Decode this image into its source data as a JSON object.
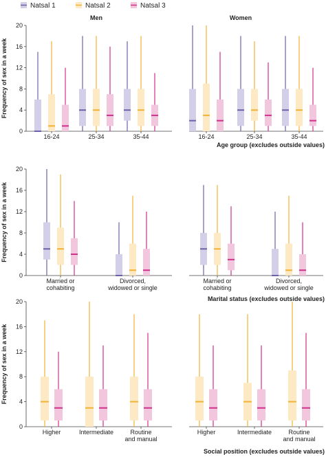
{
  "legend": [
    {
      "name": "Natsal 1",
      "color": "#6f5fa8",
      "fill": "#d4cfe8"
    },
    {
      "name": "Natsal 2",
      "color": "#f2b233",
      "fill": "#fde9c4"
    },
    {
      "name": "Natsal 3",
      "color": "#d0308c",
      "fill": "#f2c7de"
    }
  ],
  "chart_data": [
    {
      "type": "boxplot",
      "ylabel": "Frequency of sex in a week",
      "xlabel": "Age group (excludes outside values)",
      "ylim": [
        0,
        20
      ],
      "yticks": [
        0,
        4,
        8,
        12,
        16,
        20
      ],
      "grid": false,
      "groups": [
        {
          "label": "Men",
          "categories": [
            {
              "label": "16-24",
              "boxes": [
                {
                  "series": "Natsal 1",
                  "min": 0,
                  "q1": 0,
                  "median": 0,
                  "q3": 6,
                  "max": 15
                },
                {
                  "series": "Natsal 2",
                  "min": 0,
                  "q1": 0,
                  "median": 1,
                  "q3": 7,
                  "max": 17
                },
                {
                  "series": "Natsal 3",
                  "min": 0,
                  "q1": 0,
                  "median": 1,
                  "q3": 5,
                  "max": 12
                }
              ]
            },
            {
              "label": "25-34",
              "boxes": [
                {
                  "series": "Natsal 1",
                  "min": 0,
                  "q1": 1,
                  "median": 4,
                  "q3": 8,
                  "max": 18
                },
                {
                  "series": "Natsal 2",
                  "min": 0,
                  "q1": 1,
                  "median": 4,
                  "q3": 8,
                  "max": 18
                },
                {
                  "series": "Natsal 3",
                  "min": 0,
                  "q1": 1,
                  "median": 3,
                  "q3": 7,
                  "max": 16
                }
              ]
            },
            {
              "label": "35-44",
              "boxes": [
                {
                  "series": "Natsal 1",
                  "min": 0,
                  "q1": 2,
                  "median": 4,
                  "q3": 8,
                  "max": 17
                },
                {
                  "series": "Natsal 2",
                  "min": 0,
                  "q1": 1,
                  "median": 4,
                  "q3": 8,
                  "max": 18
                },
                {
                  "series": "Natsal 3",
                  "min": 0,
                  "q1": 1,
                  "median": 3,
                  "q3": 5,
                  "max": 11
                }
              ]
            }
          ]
        },
        {
          "label": "Women",
          "categories": [
            {
              "label": "16-24",
              "boxes": [
                {
                  "series": "Natsal 1",
                  "min": 0,
                  "q1": 0,
                  "median": 2,
                  "q3": 8,
                  "max": 20
                },
                {
                  "series": "Natsal 2",
                  "min": 0,
                  "q1": 0,
                  "median": 3,
                  "q3": 9,
                  "max": 20
                },
                {
                  "series": "Natsal 3",
                  "min": 0,
                  "q1": 0,
                  "median": 2,
                  "q3": 6,
                  "max": 15
                }
              ]
            },
            {
              "label": "25-34",
              "boxes": [
                {
                  "series": "Natsal 1",
                  "min": 0,
                  "q1": 1,
                  "median": 4,
                  "q3": 8,
                  "max": 18
                },
                {
                  "series": "Natsal 2",
                  "min": 0,
                  "q1": 2,
                  "median": 4,
                  "q3": 8,
                  "max": 17
                },
                {
                  "series": "Natsal 3",
                  "min": 0,
                  "q1": 1,
                  "median": 3,
                  "q3": 6,
                  "max": 13
                }
              ]
            },
            {
              "label": "35-44",
              "boxes": [
                {
                  "series": "Natsal 1",
                  "min": 0,
                  "q1": 1,
                  "median": 4,
                  "q3": 8,
                  "max": 18
                },
                {
                  "series": "Natsal 2",
                  "min": 0,
                  "q1": 1,
                  "median": 4,
                  "q3": 8,
                  "max": 18
                },
                {
                  "series": "Natsal 3",
                  "min": 0,
                  "q1": 1,
                  "median": 2,
                  "q3": 5,
                  "max": 12
                }
              ]
            }
          ]
        }
      ]
    },
    {
      "type": "boxplot",
      "ylabel": "Frequency of sex in a week",
      "xlabel": "Marital status (excludes outside values)",
      "ylim": [
        0,
        20
      ],
      "yticks": [
        0,
        4,
        8,
        12,
        16,
        20
      ],
      "grid": false,
      "groups": [
        {
          "label": "",
          "categories": [
            {
              "label": "Married or|cohabiting",
              "boxes": [
                {
                  "series": "Natsal 1",
                  "min": 0,
                  "q1": 3,
                  "median": 5,
                  "q3": 10,
                  "max": 20
                },
                {
                  "series": "Natsal 2",
                  "min": 0,
                  "q1": 2,
                  "median": 5,
                  "q3": 9,
                  "max": 19
                },
                {
                  "series": "Natsal 3",
                  "min": 0,
                  "q1": 2,
                  "median": 4,
                  "q3": 7,
                  "max": 14
                }
              ]
            },
            {
              "label": "Divorced,|widowed or single",
              "boxes": [
                {
                  "series": "Natsal 1",
                  "min": 0,
                  "q1": 0,
                  "median": 0,
                  "q3": 4,
                  "max": 10
                },
                {
                  "series": "Natsal 2",
                  "min": 0,
                  "q1": 0,
                  "median": 1,
                  "q3": 6,
                  "max": 15
                },
                {
                  "series": "Natsal 3",
                  "min": 0,
                  "q1": 0,
                  "median": 1,
                  "q3": 5,
                  "max": 12
                }
              ]
            }
          ]
        },
        {
          "label": "",
          "categories": [
            {
              "label": "Married or|cohabiting",
              "boxes": [
                {
                  "series": "Natsal 1",
                  "min": 0,
                  "q1": 2,
                  "median": 5,
                  "q3": 8,
                  "max": 17
                },
                {
                  "series": "Natsal 2",
                  "min": 0,
                  "q1": 2,
                  "median": 5,
                  "q3": 8,
                  "max": 17
                },
                {
                  "series": "Natsal 3",
                  "min": 0,
                  "q1": 1,
                  "median": 3,
                  "q3": 6,
                  "max": 13
                }
              ]
            },
            {
              "label": "Divorced,|widowed or single",
              "boxes": [
                {
                  "series": "Natsal 1",
                  "min": 0,
                  "q1": 0,
                  "median": 0,
                  "q3": 5,
                  "max": 12
                },
                {
                  "series": "Natsal 2",
                  "min": 0,
                  "q1": 0,
                  "median": 1,
                  "q3": 6,
                  "max": 15
                },
                {
                  "series": "Natsal 3",
                  "min": 0,
                  "q1": 0,
                  "median": 1,
                  "q3": 4,
                  "max": 10
                }
              ]
            }
          ]
        }
      ]
    },
    {
      "type": "boxplot",
      "ylabel": "Frequency of sex in a week",
      "xlabel": "Social position (excludes outside values)",
      "ylim": [
        0,
        20
      ],
      "yticks": [
        0,
        4,
        8,
        12,
        16,
        20
      ],
      "grid": false,
      "groups": [
        {
          "label": "",
          "categories": [
            {
              "label": "Higher",
              "boxes": [
                {
                  "series": "Natsal 2",
                  "min": 0,
                  "q1": 1,
                  "median": 4,
                  "q3": 8,
                  "max": 17
                },
                {
                  "series": "Natsal 3",
                  "min": 0,
                  "q1": 1,
                  "median": 3,
                  "q3": 6,
                  "max": 12
                }
              ]
            },
            {
              "label": "Intermediate",
              "boxes": [
                {
                  "series": "Natsal 2",
                  "min": 0,
                  "q1": 0,
                  "median": 3,
                  "q3": 8,
                  "max": 20
                },
                {
                  "series": "Natsal 3",
                  "min": 0,
                  "q1": 1,
                  "median": 3,
                  "q3": 6,
                  "max": 13
                }
              ]
            },
            {
              "label": "Routine|and manual",
              "boxes": [
                {
                  "series": "Natsal 2",
                  "min": 0,
                  "q1": 1,
                  "median": 4,
                  "q3": 8,
                  "max": 18
                },
                {
                  "series": "Natsal 3",
                  "min": 0,
                  "q1": 1,
                  "median": 3,
                  "q3": 6,
                  "max": 15
                }
              ]
            }
          ]
        },
        {
          "label": "",
          "categories": [
            {
              "label": "Higher",
              "boxes": [
                {
                  "series": "Natsal 2",
                  "min": 0,
                  "q1": 1,
                  "median": 4,
                  "q3": 8,
                  "max": 18
                },
                {
                  "series": "Natsal 3",
                  "min": 0,
                  "q1": 1,
                  "median": 3,
                  "q3": 6,
                  "max": 13
                }
              ]
            },
            {
              "label": "Intermediate",
              "boxes": [
                {
                  "series": "Natsal 2",
                  "min": 0,
                  "q1": 1,
                  "median": 4,
                  "q3": 7,
                  "max": 18
                },
                {
                  "series": "Natsal 3",
                  "min": 0,
                  "q1": 1,
                  "median": 3,
                  "q3": 6,
                  "max": 13
                }
              ]
            },
            {
              "label": "Routine|and manual",
              "boxes": [
                {
                  "series": "Natsal 2",
                  "min": 0,
                  "q1": 1,
                  "median": 4,
                  "q3": 9,
                  "max": 20
                },
                {
                  "series": "Natsal 3",
                  "min": 0,
                  "q1": 1,
                  "median": 3,
                  "q3": 6,
                  "max": 15
                }
              ]
            }
          ]
        }
      ]
    }
  ]
}
